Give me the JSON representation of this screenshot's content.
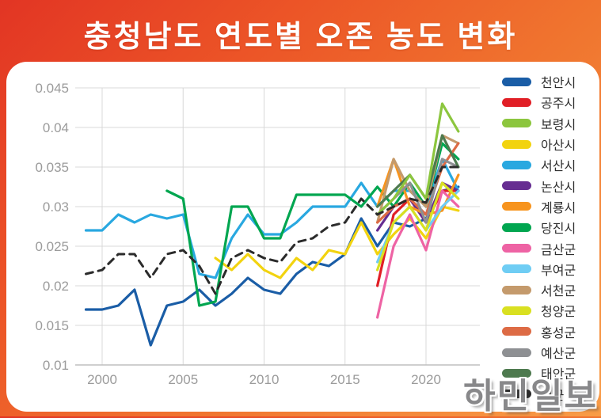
{
  "header": {
    "title": "충청남도 연도별 오존 농도 변화"
  },
  "watermark": {
    "text": "하민일보"
  },
  "chart_data": {
    "type": "line",
    "title": "충청남도 연도별 오존 농도 변화",
    "xlabel": "",
    "ylabel": "",
    "grid": true,
    "legend_position": "right",
    "x_range": [
      1998.6,
      2023.2
    ],
    "y_range": [
      0.01,
      0.045
    ],
    "x_ticks": [
      2000,
      2005,
      2010,
      2015,
      2020
    ],
    "y_ticks": [
      {
        "value": 0.045,
        "label": "0.045"
      },
      {
        "value": 0.04,
        "label": "0.04"
      },
      {
        "value": 0.035,
        "label": "0.035"
      },
      {
        "value": 0.03,
        "label": "0.03"
      },
      {
        "value": 0.025,
        "label": "0.025"
      },
      {
        "value": 0.02,
        "label": "0.02"
      },
      {
        "value": 0.015,
        "label": "0.015"
      },
      {
        "value": 0.01,
        "label": "0.01"
      }
    ],
    "series": [
      {
        "name": "천안시",
        "color": "#1a5da6",
        "style": "solid",
        "start_year": 1999,
        "values": [
          0.017,
          0.017,
          0.0175,
          0.0195,
          0.0125,
          0.0175,
          0.018,
          0.0195,
          0.0175,
          0.019,
          0.021,
          0.0195,
          0.019,
          0.0215,
          0.023,
          0.0225,
          0.024,
          0.0285,
          0.025,
          0.028,
          0.0275,
          0.0285,
          0.032,
          0.0325
        ]
      },
      {
        "name": "공주시",
        "color": "#e11f26",
        "style": "solid",
        "start_year": 2017,
        "values": [
          0.02,
          0.029,
          0.031,
          0.028,
          0.032,
          0.032
        ]
      },
      {
        "name": "보령시",
        "color": "#8cc63e",
        "style": "solid",
        "start_year": 2017,
        "values": [
          0.029,
          0.031,
          0.034,
          0.031,
          0.043,
          0.0395
        ]
      },
      {
        "name": "아산시",
        "color": "#f2d30f",
        "style": "solid",
        "start_year": 2007,
        "values": [
          0.0235,
          0.022,
          0.024,
          0.022,
          0.021,
          0.0235,
          0.022,
          0.0245,
          0.024,
          0.028,
          0.024,
          0.0265,
          0.0285,
          0.026,
          0.03,
          0.0295
        ]
      },
      {
        "name": "서산시",
        "color": "#29a8e0",
        "style": "solid",
        "start_year": 1999,
        "values": [
          0.027,
          0.027,
          0.029,
          0.028,
          0.029,
          0.0285,
          0.029,
          0.0215,
          0.021,
          0.026,
          0.029,
          0.0265,
          0.0265,
          0.028,
          0.03,
          0.03,
          0.03,
          0.033,
          0.03,
          0.032,
          0.032,
          0.03,
          0.036,
          0.032
        ]
      },
      {
        "name": "논산시",
        "color": "#662d91",
        "style": "solid",
        "start_year": 2017,
        "values": [
          0.027,
          0.03,
          0.031,
          0.028,
          0.033,
          0.032
        ]
      },
      {
        "name": "계룡시",
        "color": "#f7941e",
        "style": "solid",
        "start_year": 2017,
        "values": [
          0.03,
          0.036,
          0.03,
          0.029,
          0.0295,
          0.034
        ]
      },
      {
        "name": "당진시",
        "color": "#00a650",
        "style": "solid",
        "start_year": 2004,
        "values": [
          0.032,
          0.031,
          0.0175,
          0.018,
          0.03,
          0.03,
          0.026,
          0.026,
          0.0315,
          0.0315,
          0.0315,
          0.0315,
          0.03,
          0.0325,
          0.03,
          0.033,
          0.03,
          0.038,
          0.036
        ]
      },
      {
        "name": "금산군",
        "color": "#ee63a4",
        "style": "solid",
        "start_year": 2017,
        "values": [
          0.016,
          0.025,
          0.029,
          0.0245,
          0.032,
          0.03
        ]
      },
      {
        "name": "부여군",
        "color": "#6fcdf4",
        "style": "solid",
        "start_year": 2017,
        "values": [
          0.023,
          0.028,
          0.03,
          0.027,
          0.03,
          0.032
        ]
      },
      {
        "name": "서천군",
        "color": "#c49a6c",
        "style": "solid",
        "start_year": 2017,
        "values": [
          0.028,
          0.036,
          0.032,
          0.03,
          0.039,
          0.038
        ]
      },
      {
        "name": "청양군",
        "color": "#d9e021",
        "style": "solid",
        "start_year": 2017,
        "values": [
          0.022,
          0.028,
          0.03,
          0.027,
          0.033,
          0.031
        ]
      },
      {
        "name": "홍성군",
        "color": "#dd6b45",
        "style": "solid",
        "start_year": 2017,
        "values": [
          0.028,
          0.03,
          0.031,
          0.029,
          0.035,
          0.038
        ]
      },
      {
        "name": "예산군",
        "color": "#8e9093",
        "style": "solid",
        "start_year": 2017,
        "values": [
          0.029,
          0.031,
          0.033,
          0.028,
          0.036,
          0.035
        ]
      },
      {
        "name": "태안군",
        "color": "#4e7a4f",
        "style": "solid",
        "start_year": 2017,
        "values": [
          0.03,
          0.032,
          0.034,
          0.031,
          0.039,
          0.035
        ]
      },
      {
        "name": "평균",
        "color": "#2b2b2b",
        "style": "dashed",
        "start_year": 1999,
        "values": [
          0.0215,
          0.022,
          0.024,
          0.024,
          0.021,
          0.024,
          0.0245,
          0.0225,
          0.019,
          0.0235,
          0.0245,
          0.0235,
          0.023,
          0.0255,
          0.026,
          0.0275,
          0.028,
          0.031,
          0.029,
          0.03,
          0.031,
          0.0305,
          0.035,
          0.035
        ]
      }
    ],
    "draw_order": [
      "천안시",
      "아산시",
      "서산시",
      "당진시",
      "공주시",
      "논산시",
      "계룡시",
      "금산군",
      "부여군",
      "서천군",
      "청양군",
      "홍성군",
      "예산군",
      "태안군",
      "보령시",
      "평균"
    ]
  }
}
